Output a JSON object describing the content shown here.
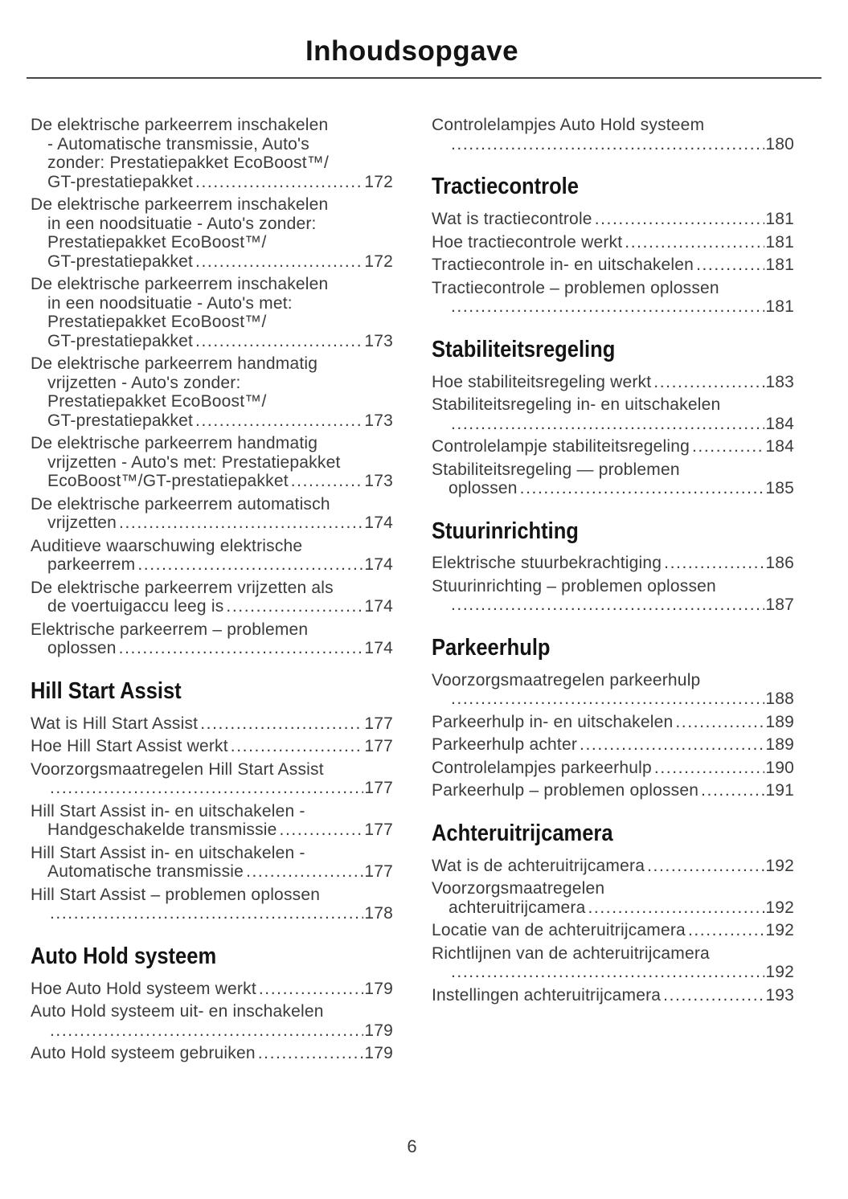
{
  "page": {
    "title": "Inhoudsopgave",
    "footer_page_number": "6"
  },
  "colors": {
    "background": "#ffffff",
    "body_text": "#3b3b3b",
    "heading_text": "#141414",
    "divider": "#474747"
  },
  "toc": {
    "left_column": [
      {
        "heading": null,
        "entries": [
          {
            "lines": [
              "De elektrische parkeerrem inschakelen",
              "- Automatische transmissie, Auto's",
              "zonder: Prestatiepakket EcoBoost™/",
              "GT-prestatiepakket"
            ],
            "page": "172"
          },
          {
            "lines": [
              "De elektrische parkeerrem inschakelen",
              "in een noodsituatie - Auto's zonder:",
              "Prestatiepakket EcoBoost™/",
              "GT-prestatiepakket"
            ],
            "page": "172"
          },
          {
            "lines": [
              "De elektrische parkeerrem inschakelen",
              "in een noodsituatie - Auto's met:",
              "Prestatiepakket EcoBoost™/",
              "GT-prestatiepakket"
            ],
            "page": "173"
          },
          {
            "lines": [
              "De elektrische parkeerrem handmatig",
              "vrijzetten - Auto's zonder:",
              "Prestatiepakket EcoBoost™/",
              "GT-prestatiepakket"
            ],
            "page": "173"
          },
          {
            "lines": [
              "De elektrische parkeerrem handmatig",
              "vrijzetten - Auto's met: Prestatiepakket",
              "EcoBoost™/GT-prestatiepakket"
            ],
            "page": "173"
          },
          {
            "lines": [
              "De elektrische parkeerrem automatisch",
              "vrijzetten"
            ],
            "page": "174"
          },
          {
            "lines": [
              "Auditieve waarschuwing elektrische",
              "parkeerrem"
            ],
            "page": "174"
          },
          {
            "lines": [
              "De elektrische parkeerrem vrijzetten als",
              "de voertuigaccu leeg is"
            ],
            "page": "174"
          },
          {
            "lines": [
              "Elektrische parkeerrem – problemen",
              "oplossen"
            ],
            "page": "174"
          }
        ]
      },
      {
        "heading": "Hill Start Assist",
        "entries": [
          {
            "lines": [
              "Wat is Hill Start Assist"
            ],
            "page": "177"
          },
          {
            "lines": [
              "Hoe Hill Start Assist werkt"
            ],
            "page": "177"
          },
          {
            "lines": [
              "Voorzorgsmaatregelen Hill Start Assist",
              ""
            ],
            "page": "177"
          },
          {
            "lines": [
              "Hill Start Assist in- en uitschakelen -",
              "Handgeschakelde transmissie"
            ],
            "page": "177"
          },
          {
            "lines": [
              "Hill Start Assist in- en uitschakelen -",
              "Automatische transmissie"
            ],
            "page": "177"
          },
          {
            "lines": [
              "Hill Start Assist – problemen oplossen",
              ""
            ],
            "page": "178"
          }
        ]
      },
      {
        "heading": "Auto Hold systeem",
        "entries": [
          {
            "lines": [
              "Hoe Auto Hold systeem werkt"
            ],
            "page": "179"
          },
          {
            "lines": [
              "Auto Hold systeem uit- en inschakelen",
              ""
            ],
            "page": "179"
          },
          {
            "lines": [
              "Auto Hold systeem gebruiken"
            ],
            "page": "179"
          }
        ]
      }
    ],
    "right_column": [
      {
        "heading": null,
        "entries": [
          {
            "lines": [
              "Controlelampjes Auto Hold systeem",
              ""
            ],
            "page": "180"
          }
        ]
      },
      {
        "heading": "Tractiecontrole",
        "entries": [
          {
            "lines": [
              "Wat is tractiecontrole"
            ],
            "page": "181"
          },
          {
            "lines": [
              "Hoe tractiecontrole werkt"
            ],
            "page": "181"
          },
          {
            "lines": [
              "Tractiecontrole in- en uitschakelen"
            ],
            "page": "181"
          },
          {
            "lines": [
              "Tractiecontrole – problemen oplossen",
              ""
            ],
            "page": "181"
          }
        ]
      },
      {
        "heading": "Stabiliteitsregeling",
        "entries": [
          {
            "lines": [
              "Hoe stabiliteitsregeling werkt"
            ],
            "page": "183"
          },
          {
            "lines": [
              "Stabiliteitsregeling in- en uitschakelen",
              ""
            ],
            "page": "184"
          },
          {
            "lines": [
              "Controlelampje stabiliteitsregeling"
            ],
            "page": "184"
          },
          {
            "lines": [
              "Stabiliteitsregeling — problemen",
              "oplossen"
            ],
            "page": "185"
          }
        ]
      },
      {
        "heading": "Stuurinrichting",
        "entries": [
          {
            "lines": [
              "Elektrische stuurbekrachtiging"
            ],
            "page": "186"
          },
          {
            "lines": [
              "Stuurinrichting – problemen oplossen",
              ""
            ],
            "page": "187"
          }
        ]
      },
      {
        "heading": "Parkeerhulp",
        "entries": [
          {
            "lines": [
              "Voorzorgsmaatregelen parkeerhulp",
              ""
            ],
            "page": "188"
          },
          {
            "lines": [
              "Parkeerhulp in- en uitschakelen"
            ],
            "page": "189"
          },
          {
            "lines": [
              "Parkeerhulp achter"
            ],
            "page": "189"
          },
          {
            "lines": [
              "Controlelampjes parkeerhulp"
            ],
            "page": "190"
          },
          {
            "lines": [
              "Parkeerhulp – problemen oplossen"
            ],
            "page": "191"
          }
        ]
      },
      {
        "heading": "Achteruitrijcamera",
        "entries": [
          {
            "lines": [
              "Wat is de achteruitrijcamera"
            ],
            "page": "192"
          },
          {
            "lines": [
              "Voorzorgsmaatregelen",
              "achteruitrijcamera"
            ],
            "page": "192"
          },
          {
            "lines": [
              "Locatie van de achteruitrijcamera"
            ],
            "page": "192"
          },
          {
            "lines": [
              "Richtlijnen van de achteruitrijcamera",
              ""
            ],
            "page": "192"
          },
          {
            "lines": [
              "Instellingen achteruitrijcamera"
            ],
            "page": "193"
          }
        ]
      }
    ]
  }
}
